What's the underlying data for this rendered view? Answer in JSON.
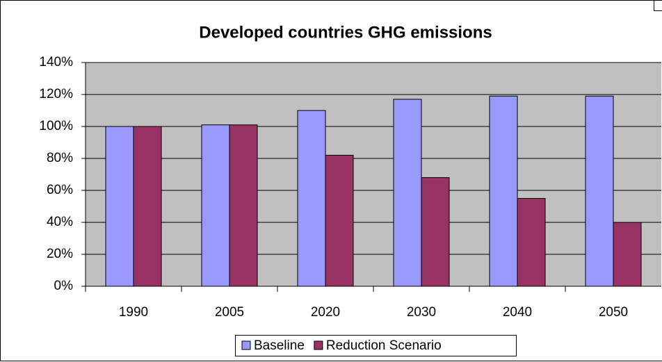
{
  "chart_data": {
    "type": "bar",
    "title": "Developed countries GHG emissions",
    "categories": [
      "1990",
      "2005",
      "2020",
      "2030",
      "2040",
      "2050"
    ],
    "series": [
      {
        "name": "Baseline",
        "color": "#9999ff",
        "values": [
          100,
          101,
          110,
          117,
          119,
          119
        ]
      },
      {
        "name": "Reduction Scenario",
        "color": "#993366",
        "values": [
          100,
          101,
          82,
          68,
          55,
          40
        ]
      }
    ],
    "ylim": [
      0,
      140
    ],
    "yticks": [
      {
        "value": 0,
        "label": "0%"
      },
      {
        "value": 20,
        "label": "20%"
      },
      {
        "value": 40,
        "label": "40%"
      },
      {
        "value": 60,
        "label": "60%"
      },
      {
        "value": 80,
        "label": "80%"
      },
      {
        "value": 100,
        "label": "100%"
      },
      {
        "value": 120,
        "label": "120%"
      },
      {
        "value": 140,
        "label": "140%"
      }
    ],
    "grid": true,
    "legend": "bottom"
  }
}
